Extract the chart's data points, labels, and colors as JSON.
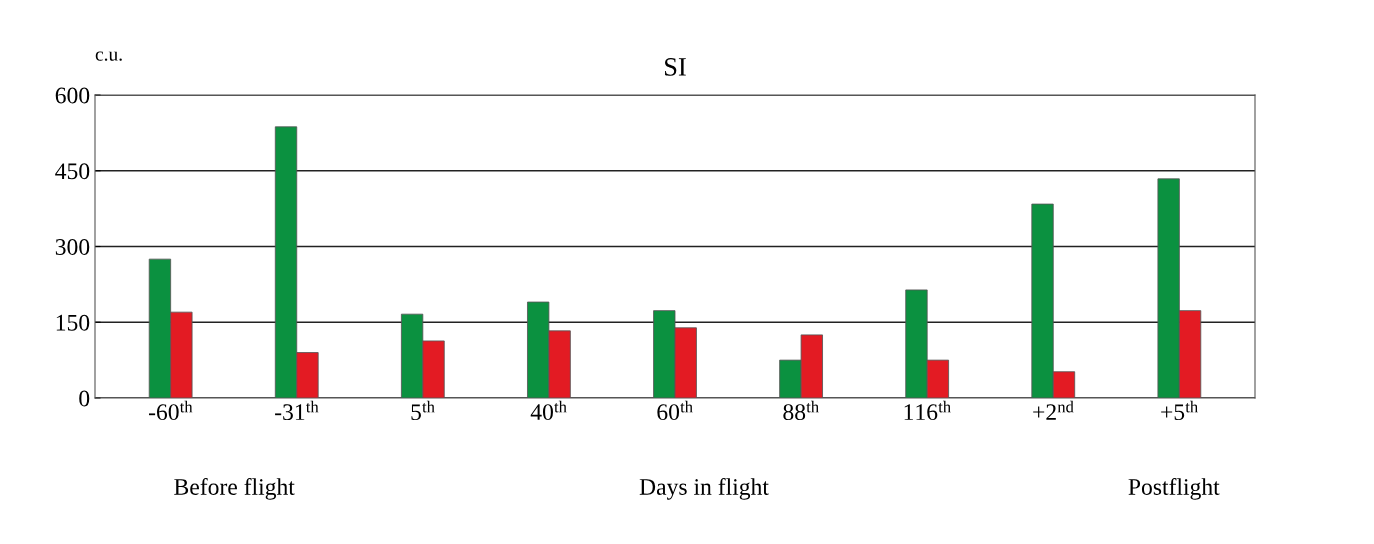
{
  "chart_data": {
    "type": "bar",
    "title": "SI",
    "ylabel": "c.u.",
    "categories": [
      "-60$^{th}$",
      "-31$^{th}$",
      "5$^{th}$",
      "40$^{th}$",
      "60$^{th}$",
      "88$^{th}$",
      "116$^{th}$",
      "+2$^{nd}$",
      "+5$^{th}$"
    ],
    "series": [
      {
        "color": "#0b9140",
        "values": [
          275,
          537,
          166,
          190,
          173,
          75,
          214,
          384,
          434
        ]
      },
      {
        "color": "#e31b23",
        "values": [
          170,
          90,
          113,
          133,
          139,
          125,
          75,
          52,
          173
        ]
      }
    ],
    "ylim": [
      0,
      600
    ],
    "yticks": [
      0,
      150,
      300,
      450,
      600
    ],
    "grid": "y",
    "legend": false,
    "annotations": [
      "Before flight",
      "Days in flight",
      "Postflight"
    ]
  }
}
